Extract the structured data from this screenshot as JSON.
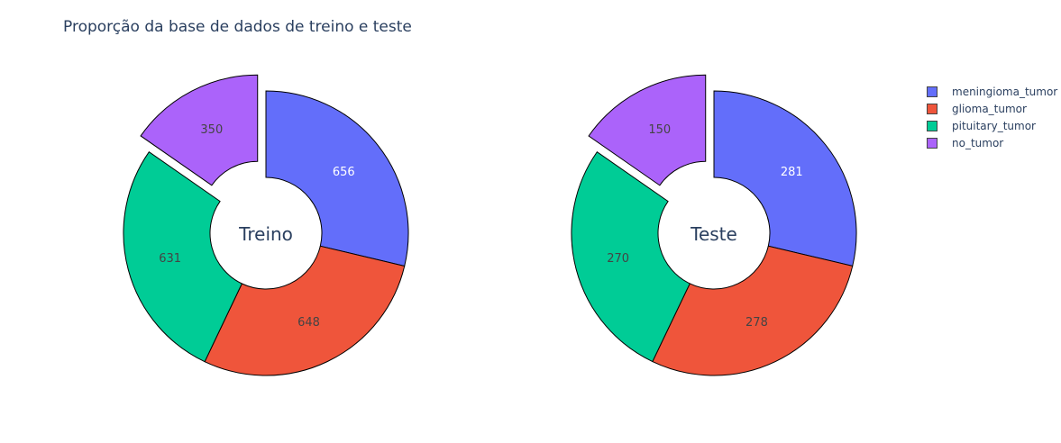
{
  "title": "Proporção da base de dados de treino e teste",
  "legend": [
    {
      "label": "meningioma_tumor",
      "color": "#636efa"
    },
    {
      "label": "glioma_tumor",
      "color": "#ef553b"
    },
    {
      "label": "pituitary_tumor",
      "color": "#00cc96"
    },
    {
      "label": "no_tumor",
      "color": "#ab63fa"
    }
  ],
  "chart_data": [
    {
      "type": "pie",
      "hole_label": "Treino",
      "categories": [
        "meningioma_tumor",
        "glioma_tumor",
        "pituitary_tumor",
        "no_tumor"
      ],
      "values": [
        656,
        648,
        631,
        350
      ],
      "colors": [
        "#636efa",
        "#ef553b",
        "#00cc96",
        "#ab63fa"
      ],
      "pulled": [
        "no_tumor"
      ],
      "donut": true,
      "legend_position": "top-right"
    },
    {
      "type": "pie",
      "hole_label": "Teste",
      "categories": [
        "meningioma_tumor",
        "glioma_tumor",
        "pituitary_tumor",
        "no_tumor"
      ],
      "values": [
        281,
        278,
        270,
        150
      ],
      "colors": [
        "#636efa",
        "#ef553b",
        "#00cc96",
        "#ab63fa"
      ],
      "pulled": [
        "no_tumor"
      ],
      "donut": true,
      "legend_position": "top-right"
    }
  ]
}
